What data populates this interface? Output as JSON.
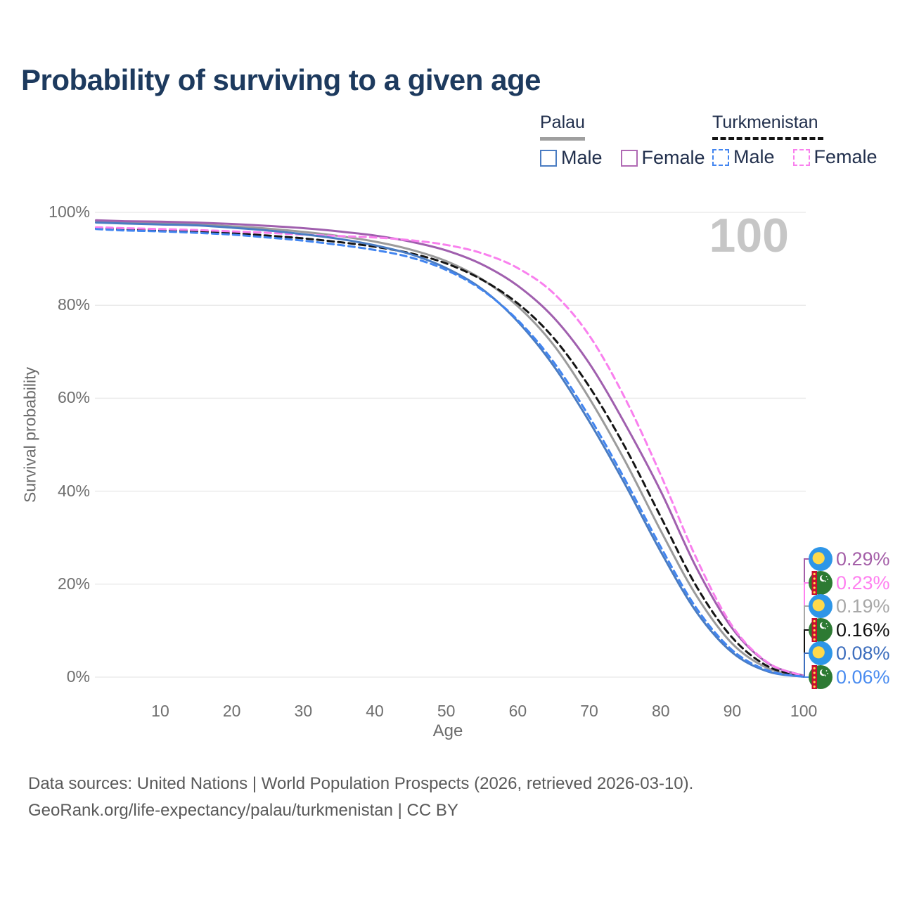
{
  "title": "Probability of surviving to a given age",
  "watermark": "100",
  "legend": {
    "groups": [
      {
        "name": "Palau",
        "line_style": "solid",
        "underline_color": "#9f9f9f",
        "items": [
          {
            "label": "Male",
            "color": "#4a7cc2"
          },
          {
            "label": "Female",
            "color": "#b06ab4"
          }
        ]
      },
      {
        "name": "Turkmenistan",
        "line_style": "dashed",
        "underline_color": "#141414",
        "items": [
          {
            "label": "Male",
            "color": "#4285f0"
          },
          {
            "label": "Female",
            "color": "#f980ee"
          }
        ]
      }
    ]
  },
  "chart_data": {
    "type": "line",
    "title": "Probability of surviving to a given age",
    "xlabel": "Age",
    "ylabel": "Survival probability",
    "xlim": [
      0,
      100
    ],
    "ylim": [
      0,
      100
    ],
    "grid": "horizontal",
    "x_ticks": [
      10,
      20,
      30,
      40,
      50,
      60,
      70,
      80,
      90,
      100
    ],
    "y_ticks": [
      {
        "value": 0,
        "label": "0%"
      },
      {
        "value": 20,
        "label": "20%"
      },
      {
        "value": 40,
        "label": "40%"
      },
      {
        "value": 60,
        "label": "60%"
      },
      {
        "value": 80,
        "label": "80%"
      },
      {
        "value": 100,
        "label": "100%"
      }
    ],
    "ages": [
      1,
      5,
      10,
      15,
      20,
      25,
      30,
      35,
      40,
      45,
      50,
      55,
      60,
      65,
      70,
      75,
      80,
      85,
      90,
      95,
      100
    ],
    "series": [
      {
        "id": "palau_all",
        "name": "Palau (both sexes)",
        "country": "Palau",
        "sex": "All",
        "color": "#9b9b9b",
        "dash": "solid",
        "values": [
          98.0,
          97.8,
          97.6,
          97.4,
          97.0,
          96.5,
          95.8,
          94.9,
          93.7,
          92.0,
          89.5,
          85.6,
          79.8,
          71.5,
          60.0,
          46.5,
          31.5,
          17.5,
          7.2,
          1.9,
          0.19
        ]
      },
      {
        "id": "turkmenistan_all",
        "name": "Turkmenistan (both sexes)",
        "country": "Turkmenistan",
        "sex": "All",
        "color": "#151515",
        "dash": "dashed",
        "values": [
          96.6,
          96.3,
          96.1,
          95.9,
          95.5,
          95.0,
          94.4,
          93.6,
          92.6,
          91.2,
          89.0,
          85.5,
          80.4,
          73.0,
          62.5,
          49.5,
          34.5,
          19.5,
          8.5,
          2.3,
          0.16
        ]
      },
      {
        "id": "palau_female",
        "name": "Palau Female",
        "country": "Palau",
        "sex": "Female",
        "color": "#a05fae",
        "dash": "solid",
        "values": [
          98.3,
          98.1,
          98.0,
          97.8,
          97.5,
          97.1,
          96.6,
          95.9,
          95.0,
          93.7,
          91.8,
          88.8,
          84.2,
          77.4,
          67.5,
          54.5,
          40.0,
          23.5,
          10.5,
          3.0,
          0.29
        ]
      },
      {
        "id": "turkmenistan_female",
        "name": "Turkmenistan Female",
        "country": "Turkmenistan",
        "sex": "Female",
        "color": "#f980ee",
        "dash": "dashed",
        "values": [
          96.8,
          96.6,
          96.4,
          96.2,
          95.9,
          95.6,
          95.2,
          94.9,
          94.6,
          94.0,
          93.0,
          91.2,
          88.0,
          82.6,
          73.5,
          60.0,
          43.5,
          25.5,
          11.0,
          3.1,
          0.23
        ]
      },
      {
        "id": "palau_male",
        "name": "Palau Male",
        "country": "Palau",
        "sex": "Male",
        "color": "#4a7cc2",
        "dash": "solid",
        "values": [
          97.8,
          97.6,
          97.4,
          97.2,
          96.7,
          96.1,
          95.3,
          94.3,
          92.9,
          91.0,
          88.0,
          83.5,
          76.5,
          67.0,
          55.0,
          41.5,
          27.0,
          14.0,
          5.3,
          1.2,
          0.08
        ]
      },
      {
        "id": "turkmenistan_male",
        "name": "Turkmenistan Male",
        "country": "Turkmenistan",
        "sex": "Male",
        "color": "#4285f0",
        "dash": "dashed",
        "values": [
          96.4,
          96.1,
          95.9,
          95.6,
          95.2,
          94.6,
          93.9,
          93.0,
          91.9,
          90.3,
          87.6,
          83.3,
          76.8,
          67.8,
          56.0,
          42.5,
          28.0,
          14.8,
          5.8,
          1.4,
          0.06
        ]
      }
    ],
    "end_labels": [
      {
        "series": "palau_female",
        "flag": "palau",
        "value": "0.29%",
        "color": "#a45fa8"
      },
      {
        "series": "turkmenistan_female",
        "flag": "turkmenistan",
        "value": "0.23%",
        "color": "#ff80f0"
      },
      {
        "series": "palau_all",
        "flag": "palau",
        "value": "0.19%",
        "color": "#a8a8a8"
      },
      {
        "series": "turkmenistan_all",
        "flag": "turkmenistan",
        "value": "0.16%",
        "color": "#111111"
      },
      {
        "series": "palau_male",
        "flag": "palau",
        "value": "0.08%",
        "color": "#3e6fbe"
      },
      {
        "series": "turkmenistan_male",
        "flag": "turkmenistan",
        "value": "0.06%",
        "color": "#4a8cf0"
      }
    ]
  },
  "footer": {
    "line1": "Data sources: United Nations | World Population Prospects (2026, retrieved 2026-03-10).",
    "line2": "GeoRank.org/life-expectancy/palau/turkmenistan | CC BY"
  }
}
